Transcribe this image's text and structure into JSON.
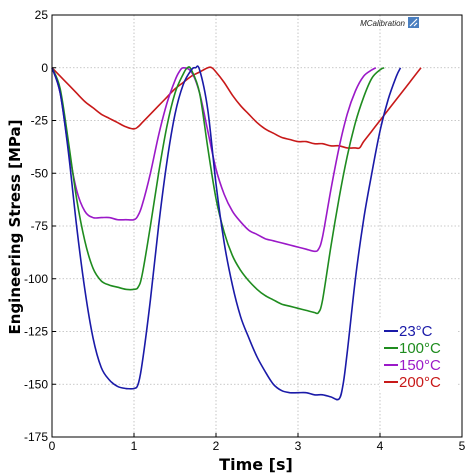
{
  "chart_data": {
    "type": "line",
    "xlabel": "Time [s]",
    "ylabel": "Engineering Stress [MPa]",
    "xlim": [
      0,
      5
    ],
    "ylim": [
      -175,
      25
    ],
    "x_ticks": [
      "0",
      "1",
      "2",
      "3",
      "4",
      "5"
    ],
    "y_ticks": [
      "25",
      "0",
      "-25",
      "-50",
      "-75",
      "-100",
      "-125",
      "-150",
      "-175"
    ],
    "grid": true,
    "legend_position": "bottom-right",
    "watermark": "MCalibration",
    "series": [
      {
        "name": "23°C",
        "color": "#1a1aa8",
        "x": [
          0,
          0.1,
          0.2,
          0.3,
          0.4,
          0.5,
          0.6,
          0.7,
          0.8,
          0.9,
          1.0,
          1.05,
          1.1,
          1.2,
          1.3,
          1.4,
          1.5,
          1.6,
          1.7,
          1.75,
          1.8,
          1.9,
          2.0,
          2.1,
          2.2,
          2.3,
          2.4,
          2.5,
          2.6,
          2.7,
          2.8,
          2.9,
          3.0,
          3.1,
          3.2,
          3.3,
          3.4,
          3.5,
          3.55,
          3.6,
          3.7,
          3.8,
          3.9,
          4.0,
          4.1,
          4.2,
          4.25
        ],
        "values": [
          0,
          -12,
          -40,
          -75,
          -105,
          -128,
          -142,
          -148,
          -151,
          -152,
          -152,
          -150,
          -140,
          -110,
          -75,
          -45,
          -22,
          -8,
          -1,
          0,
          -1,
          -20,
          -55,
          -83,
          -103,
          -118,
          -128,
          -137,
          -144,
          -150,
          -153,
          -154,
          -154,
          -154,
          -155,
          -155,
          -156,
          -157,
          -150,
          -135,
          -100,
          -72,
          -50,
          -30,
          -15,
          -4,
          0
        ]
      },
      {
        "name": "100°C",
        "color": "#1f8c1f",
        "x": [
          0,
          0.1,
          0.2,
          0.3,
          0.4,
          0.5,
          0.6,
          0.7,
          0.8,
          0.9,
          1.0,
          1.05,
          1.1,
          1.2,
          1.3,
          1.4,
          1.5,
          1.6,
          1.65,
          1.7,
          1.8,
          1.9,
          2.0,
          2.1,
          2.2,
          2.3,
          2.4,
          2.5,
          2.6,
          2.7,
          2.8,
          2.9,
          3.0,
          3.1,
          3.2,
          3.25,
          3.3,
          3.4,
          3.5,
          3.6,
          3.7,
          3.8,
          3.9,
          4.0,
          4.05
        ],
        "values": [
          0,
          -10,
          -35,
          -62,
          -82,
          -95,
          -101,
          -103,
          -104,
          -105,
          -105,
          -104,
          -98,
          -75,
          -50,
          -28,
          -12,
          -3,
          0,
          -1,
          -12,
          -38,
          -62,
          -78,
          -89,
          -96,
          -101,
          -105,
          -108,
          -110,
          -112,
          -113,
          -114,
          -115,
          -116,
          -116,
          -110,
          -85,
          -62,
          -42,
          -26,
          -14,
          -5,
          -1,
          0
        ]
      },
      {
        "name": "150°C",
        "color": "#9b19c8",
        "x": [
          0,
          0.1,
          0.2,
          0.3,
          0.4,
          0.5,
          0.6,
          0.7,
          0.8,
          0.9,
          1.0,
          1.05,
          1.1,
          1.2,
          1.3,
          1.4,
          1.5,
          1.55,
          1.6,
          1.7,
          1.8,
          1.9,
          2.0,
          2.1,
          2.2,
          2.3,
          2.4,
          2.5,
          2.6,
          2.7,
          2.8,
          2.9,
          3.0,
          3.1,
          3.2,
          3.25,
          3.3,
          3.4,
          3.5,
          3.6,
          3.7,
          3.8,
          3.9,
          3.95
        ],
        "values": [
          0,
          -12,
          -38,
          -58,
          -68,
          -71,
          -71,
          -71,
          -72,
          -72,
          -72,
          -70,
          -65,
          -50,
          -32,
          -17,
          -6,
          -2,
          0,
          -2,
          -12,
          -30,
          -48,
          -60,
          -68,
          -73,
          -77,
          -79,
          -81,
          -82,
          -83,
          -84,
          -85,
          -86,
          -87,
          -86,
          -80,
          -58,
          -38,
          -22,
          -11,
          -4,
          -1,
          0
        ]
      },
      {
        "name": "200°C",
        "color": "#c81919",
        "x": [
          0,
          0.1,
          0.2,
          0.3,
          0.4,
          0.5,
          0.6,
          0.7,
          0.8,
          0.9,
          1.0,
          1.05,
          1.1,
          1.2,
          1.3,
          1.4,
          1.5,
          1.6,
          1.7,
          1.8,
          1.9,
          1.95,
          2.0,
          2.1,
          2.2,
          2.3,
          2.4,
          2.5,
          2.6,
          2.7,
          2.8,
          2.9,
          3.0,
          3.1,
          3.2,
          3.3,
          3.4,
          3.5,
          3.6,
          3.7,
          3.75,
          3.8,
          3.9,
          4.0,
          4.1,
          4.2,
          4.3,
          4.4,
          4.5
        ],
        "values": [
          0,
          -4,
          -8,
          -12,
          -16,
          -19,
          -22,
          -24,
          -26,
          -28,
          -29,
          -28,
          -26,
          -22,
          -18,
          -14,
          -10,
          -7,
          -4,
          -2,
          0,
          0,
          -2,
          -7,
          -13,
          -18,
          -22,
          -26,
          -29,
          -31,
          -33,
          -34,
          -35,
          -35,
          -36,
          -36,
          -37,
          -37,
          -38,
          -38,
          -38,
          -35,
          -30,
          -25,
          -20,
          -15,
          -10,
          -5,
          0
        ]
      }
    ]
  }
}
